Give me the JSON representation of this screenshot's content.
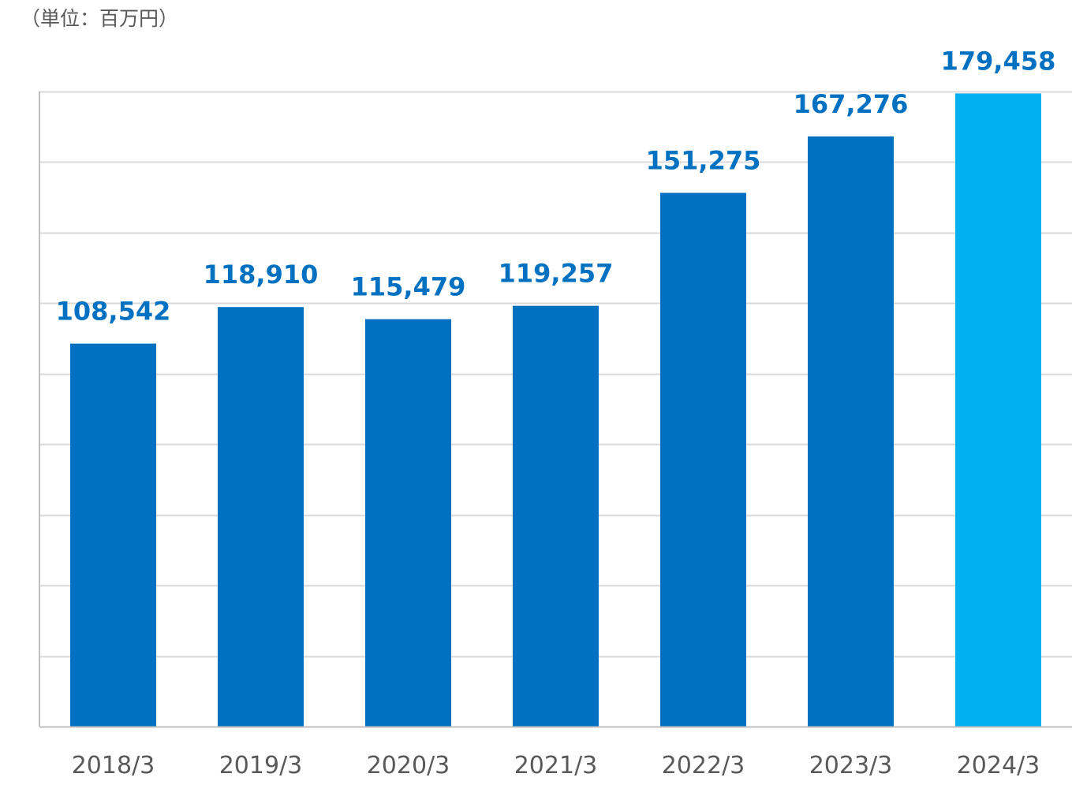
{
  "unit_label": "（単位：百万円）",
  "colors": {
    "bar": "#0070C0",
    "bar_highlight": "#00B0F0",
    "value_label": "#0070C0",
    "grid": "#D9D9D9",
    "axis": "#BFBFBF",
    "tick_label": "#595959"
  },
  "chart_data": {
    "type": "bar",
    "categories": [
      "2018/3",
      "2019/3",
      "2020/3",
      "2021/3",
      "2022/3",
      "2023/3",
      "2024/3"
    ],
    "values": [
      108542,
      118910,
      115479,
      119257,
      151275,
      167276,
      179458
    ],
    "value_labels": [
      "108,542",
      "118,910",
      "115,479",
      "119,257",
      "151,275",
      "167,276",
      "179,458"
    ],
    "highlight_index": 6,
    "ylim": [
      0,
      180000
    ],
    "grid_step": 20000,
    "grid": true,
    "legend": "none",
    "xlabel": "",
    "ylabel": ""
  }
}
